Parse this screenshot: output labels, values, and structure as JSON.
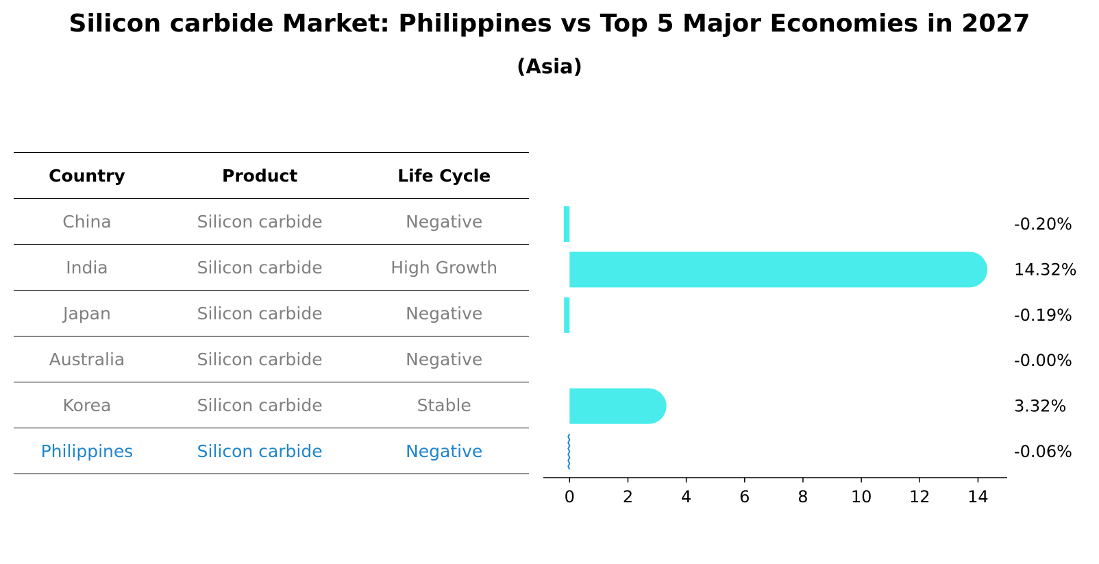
{
  "title": "Silicon carbide Market: Philippines vs Top 5 Major Economies in 2027",
  "subtitle": "(Asia)",
  "table": {
    "headers": [
      "Country",
      "Product",
      "Life Cycle"
    ],
    "rows": [
      {
        "country": "China",
        "product": "Silicon carbide",
        "life_cycle": "Negative"
      },
      {
        "country": "India",
        "product": "Silicon carbide",
        "life_cycle": "High Growth"
      },
      {
        "country": "Japan",
        "product": "Silicon carbide",
        "life_cycle": "Negative"
      },
      {
        "country": "Australia",
        "product": "Silicon carbide",
        "life_cycle": "Negative"
      },
      {
        "country": "Korea",
        "product": "Silicon carbide",
        "life_cycle": "Stable"
      },
      {
        "country": "Philippines",
        "product": "Silicon carbide",
        "life_cycle": "Negative"
      }
    ]
  },
  "colors": {
    "bar": "#4aeceb",
    "highlight": "#1f85cc",
    "muted_text": "#808080"
  },
  "chart_data": {
    "type": "bar",
    "orientation": "horizontal",
    "title": "Silicon carbide Market: Philippines vs Top 5 Major Economies in 2027",
    "subtitle": "(Asia)",
    "categories": [
      "China",
      "India",
      "Japan",
      "Australia",
      "Korea",
      "Philippines"
    ],
    "values": [
      -0.2,
      14.32,
      -0.19,
      -0.0,
      3.32,
      -0.06
    ],
    "value_labels": [
      "-0.20%",
      "14.32%",
      "-0.19%",
      "-0.00%",
      "3.32%",
      "-0.06%"
    ],
    "highlight_category": "Philippines",
    "xlim": [
      -0.9,
      15
    ],
    "xticks": [
      0,
      2,
      4,
      6,
      8,
      10,
      12,
      14
    ],
    "xlabel": "",
    "ylabel": "",
    "grid": false
  }
}
